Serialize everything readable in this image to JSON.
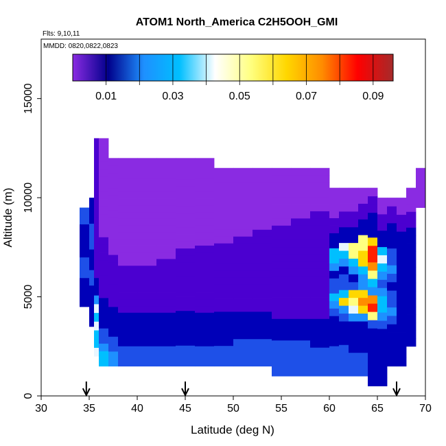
{
  "chart_data": {
    "type": "heatmap",
    "title": "ATOM1 North_America C2H5OOH_GMI",
    "flights_label": "Flts: 9,10,11",
    "dates_label": "MMDD: 0820,0822,0823",
    "xlabel": "Latitude (deg N)",
    "ylabel": "Altitude (m)",
    "xlim": [
      30,
      70
    ],
    "ylim": [
      0,
      18000
    ],
    "xticks": [
      "30",
      "35",
      "40",
      "45",
      "50",
      "55",
      "60",
      "65",
      "70"
    ],
    "yticks": [
      "0",
      "5000",
      "10000",
      "15000"
    ],
    "colorbar": {
      "range": [
        0,
        0.096
      ],
      "ticks": [
        "0.01",
        "0.03",
        "0.05",
        "0.07",
        "0.09"
      ],
      "colors": [
        "#8a2be2",
        "#00008b",
        "#1e90ff",
        "#00bfff",
        "#ffffff",
        "#ffff80",
        "#ffd700",
        "#ff8c00",
        "#ff0000",
        "#a52a2a"
      ]
    },
    "arrows_latitude": [
      34.7,
      45.0,
      67.0
    ],
    "grid": {
      "x0": 34,
      "dx": 1,
      "y0": 500,
      "dy": 500,
      "nx": 35,
      "ny": 24
    },
    "columns": [
      [
        34,
        4500,
        9500,
        "cccccccdddddccccccccdddd"
      ],
      [
        35,
        3500,
        10000,
        "ccccccccdddccccdddddccccc"
      ],
      [
        35.5,
        2000,
        13000,
        "gffgfgeccbbbbbbbbbbbbbbbb"
      ],
      [
        36,
        1500,
        13000,
        "ffeddccccbbbbbbbbaaaaaaaaaaaaa"
      ],
      [
        37,
        1500,
        12000,
        "eeddccccbbbbbbbaaaaaaaaaaaaa"
      ],
      [
        38,
        1500,
        12000,
        "dddcccccbbbbbbbaaaaaaaaaaaaaaaa"
      ],
      [
        40,
        1500,
        12000,
        "dddcccccbbbbbbbaaaaaaaaaaaaaaaa"
      ],
      [
        42,
        1500,
        12000,
        "dddcccccbbbbbbbbaaaaaaaaaaaaaaa"
      ],
      [
        44,
        1500,
        12000,
        "dddcccccbbbbbbbbbaaaaaaaaaaaaa"
      ],
      [
        46,
        1500,
        12000,
        "dddcccccbbbbbbbbbbaaaaaaaaaaaaa"
      ],
      [
        48,
        1500,
        11500,
        "dddcccccbbbbbbbbbbaaaaaaaaaaa"
      ],
      [
        50,
        1500,
        11500,
        "ddddccccbbbbbbbbbbbaaaaaaaaaa"
      ],
      [
        52,
        1500,
        11500,
        "ddddccccbbbbbbbbbbbbaaaaaaaaa"
      ],
      [
        54,
        1000,
        11500,
        "dddddcccbbbbbbbbbbbbbaaaaaaaa"
      ],
      [
        56,
        1000,
        11500,
        "dddddcccbbbbbbbbbbbbbbaaaaaaa"
      ],
      [
        58,
        1000,
        11500,
        "ddddccccbbbbbbbbbbbbbbbaaaaaa"
      ],
      [
        60,
        1000,
        10500,
        "ddddccccdefddceffccbbaaaa"
      ],
      [
        61,
        1000,
        10500,
        "ddddcccdeifddcefgccbbaaa"
      ],
      [
        62,
        1000,
        10500,
        "dddcccceghidcefhhccbbaaa"
      ],
      [
        63,
        1000,
        10500,
        "dddcccceijieefiihhccbbaa"
      ],
      [
        64,
        500,
        10500,
        "cccccccdhkjefhjkkicccbba"
      ],
      [
        65,
        500,
        10000,
        "cccccccdeffedefgfccbbaa"
      ],
      [
        66,
        1500,
        10000,
        "cccccdeddcdeddcccbba"
      ],
      [
        67,
        1500,
        10000,
        "ccccccccccccccccbbaa"
      ],
      [
        68,
        2500,
        10500,
        "cccccccccccccccbbaaa"
      ],
      [
        69,
        9500,
        11500,
        "aaaa"
      ]
    ]
  }
}
